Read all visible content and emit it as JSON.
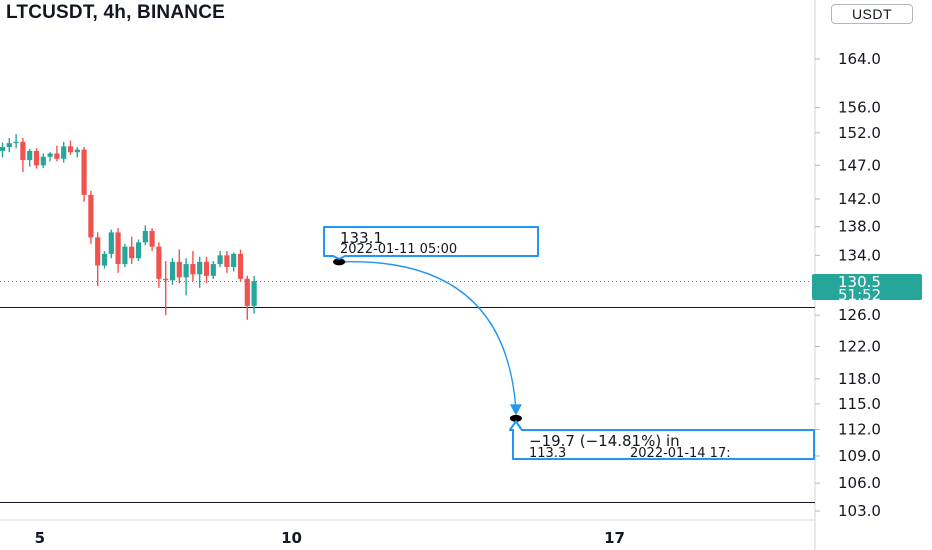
{
  "header": {
    "title": "LTCUSDT, 4h, BINANCE",
    "currency": "USDT"
  },
  "colors": {
    "up": "#26a69a",
    "down": "#ef5350",
    "arrow": "#2196f3",
    "current_price_badge": "#26a69a",
    "hline": "#131722"
  },
  "chart_data": {
    "type": "candlestick",
    "symbol": "LTCUSDT",
    "interval": "4h",
    "exchange": "BINANCE",
    "y_axis": {
      "ticks": [
        164.0,
        156.0,
        152.0,
        147.0,
        142.0,
        138.0,
        134.0,
        126.0,
        122.0,
        118.0,
        115.0,
        112.0,
        109.0,
        106.0,
        103.0
      ],
      "tick_labels": [
        "164.0",
        "156.0",
        "152.0",
        "147.0",
        "142.0",
        "138.0",
        "134.0",
        "126.0",
        "122.0",
        "118.0",
        "115.0",
        "112.0",
        "109.0",
        "106.0",
        "103.0"
      ],
      "scale": "log",
      "range": [
        101.5,
        172.0
      ]
    },
    "x_axis": {
      "tick_labels": [
        "5",
        "10",
        "17"
      ],
      "tick_index": [
        5.5,
        42.5,
        90.0
      ]
    },
    "candles": [
      {
        "o": 149.2,
        "h": 150.5,
        "l": 148.2,
        "c": 149.8
      },
      {
        "o": 149.8,
        "h": 151.2,
        "l": 149.0,
        "c": 150.4
      },
      {
        "o": 150.4,
        "h": 151.8,
        "l": 149.6,
        "c": 150.6
      },
      {
        "o": 150.6,
        "h": 151.2,
        "l": 146.0,
        "c": 147.8
      },
      {
        "o": 147.8,
        "h": 149.5,
        "l": 146.8,
        "c": 149.2
      },
      {
        "o": 149.2,
        "h": 149.6,
        "l": 146.5,
        "c": 147.0
      },
      {
        "o": 147.0,
        "h": 148.8,
        "l": 146.6,
        "c": 148.3
      },
      {
        "o": 148.3,
        "h": 149.0,
        "l": 147.6,
        "c": 148.8
      },
      {
        "o": 148.8,
        "h": 150.0,
        "l": 147.6,
        "c": 148.0
      },
      {
        "o": 148.0,
        "h": 150.6,
        "l": 147.4,
        "c": 149.9
      },
      {
        "o": 149.9,
        "h": 150.8,
        "l": 148.6,
        "c": 149.0
      },
      {
        "o": 149.0,
        "h": 149.8,
        "l": 148.2,
        "c": 149.4
      },
      {
        "o": 149.4,
        "h": 149.8,
        "l": 141.6,
        "c": 142.6
      },
      {
        "o": 142.6,
        "h": 143.2,
        "l": 135.6,
        "c": 136.5
      },
      {
        "o": 136.5,
        "h": 137.2,
        "l": 129.8,
        "c": 132.6
      },
      {
        "o": 132.6,
        "h": 134.6,
        "l": 132.2,
        "c": 134.2
      },
      {
        "o": 134.2,
        "h": 137.6,
        "l": 133.6,
        "c": 137.2
      },
      {
        "o": 137.2,
        "h": 137.8,
        "l": 131.6,
        "c": 132.8
      },
      {
        "o": 132.8,
        "h": 135.6,
        "l": 132.4,
        "c": 135.2
      },
      {
        "o": 135.2,
        "h": 136.6,
        "l": 132.8,
        "c": 133.6
      },
      {
        "o": 133.6,
        "h": 136.2,
        "l": 133.2,
        "c": 135.8
      },
      {
        "o": 135.8,
        "h": 138.2,
        "l": 135.4,
        "c": 137.4
      },
      {
        "o": 137.4,
        "h": 137.8,
        "l": 134.6,
        "c": 135.2
      },
      {
        "o": 135.2,
        "h": 135.8,
        "l": 129.6,
        "c": 130.8
      },
      {
        "o": 130.8,
        "h": 133.2,
        "l": 126.0,
        "c": 130.6
      },
      {
        "o": 130.6,
        "h": 133.6,
        "l": 130.0,
        "c": 133.1
      },
      {
        "o": 133.1,
        "h": 134.8,
        "l": 130.2,
        "c": 131.0
      },
      {
        "o": 131.0,
        "h": 133.6,
        "l": 128.6,
        "c": 132.8
      },
      {
        "o": 132.8,
        "h": 134.6,
        "l": 130.4,
        "c": 131.4
      },
      {
        "o": 131.4,
        "h": 133.8,
        "l": 129.6,
        "c": 133.1
      },
      {
        "o": 133.1,
        "h": 133.8,
        "l": 130.2,
        "c": 131.2
      },
      {
        "o": 131.2,
        "h": 133.2,
        "l": 130.8,
        "c": 132.8
      },
      {
        "o": 132.8,
        "h": 134.6,
        "l": 132.4,
        "c": 134.0
      },
      {
        "o": 134.0,
        "h": 134.6,
        "l": 131.6,
        "c": 132.4
      },
      {
        "o": 132.4,
        "h": 134.4,
        "l": 131.8,
        "c": 134.2
      },
      {
        "o": 134.2,
        "h": 134.8,
        "l": 130.4,
        "c": 130.8
      },
      {
        "o": 130.8,
        "h": 131.2,
        "l": 125.4,
        "c": 127.2
      },
      {
        "o": 127.2,
        "h": 131.2,
        "l": 126.2,
        "c": 130.5
      }
    ],
    "current_price": {
      "price": 130.5,
      "price_label": "130.5",
      "countdown": "51:52"
    },
    "horizontal_lines": [
      127.1,
      104.0
    ],
    "annotations": {
      "start": {
        "price_text": "133.1",
        "time_text": "2022-01-11 05:00",
        "price": 133.1,
        "index": 49.5
      },
      "end": {
        "change_text": "−19.7 (−14.81%) in",
        "price_text": "113.3",
        "time_text": "2022-01-14  17:",
        "price": 113.3,
        "index": 75.5
      }
    }
  }
}
